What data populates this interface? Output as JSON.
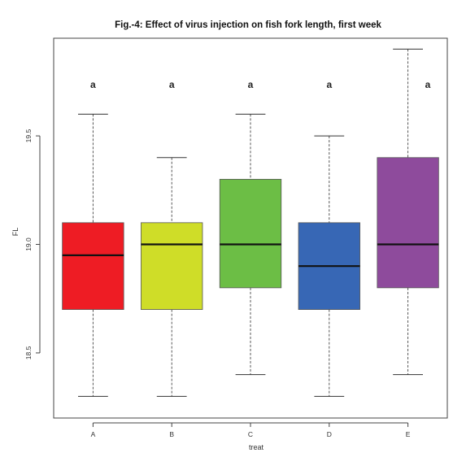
{
  "chart_data": {
    "type": "boxplot",
    "title": "Fig.-4: Effect of virus  injection on fish fork length, first week",
    "xlabel": "treat",
    "ylabel": "FL",
    "ylim": [
      18.2,
      19.95
    ],
    "yticks": [
      18.5,
      19.0,
      19.5
    ],
    "ytick_labels": [
      "18.5",
      "19.0",
      "19.5"
    ],
    "categories": [
      "A",
      "B",
      "C",
      "D",
      "E"
    ],
    "boxes": [
      {
        "min": 18.3,
        "q1": 18.7,
        "median": 18.95,
        "q3": 19.1,
        "max": 19.6,
        "color": "#ee1c24",
        "sig": "a"
      },
      {
        "min": 18.3,
        "q1": 18.7,
        "median": 19.0,
        "q3": 19.1,
        "max": 19.4,
        "color": "#cfdd28",
        "sig": "a"
      },
      {
        "min": 18.4,
        "q1": 18.8,
        "median": 19.0,
        "q3": 19.3,
        "max": 19.6,
        "color": "#6cbe45",
        "sig": "a"
      },
      {
        "min": 18.3,
        "q1": 18.7,
        "median": 18.9,
        "q3": 19.1,
        "max": 19.5,
        "color": "#3767b5",
        "sig": "a"
      },
      {
        "min": 18.4,
        "q1": 18.8,
        "median": 19.0,
        "q3": 19.4,
        "max": 19.9,
        "color": "#8e4b9c",
        "sig": "a"
      }
    ],
    "grid": false,
    "legend": "none"
  }
}
